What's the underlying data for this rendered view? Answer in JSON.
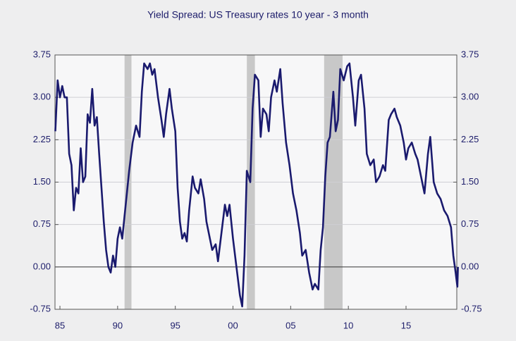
{
  "chart_data": {
    "type": "line",
    "title": "Yield Spread:  US Treasury rates 10 year - 3 month",
    "series": [
      {
        "name": "Yield Spread",
        "color": "#1a1a6e",
        "x": [
          1984.6,
          1984.8,
          1985.0,
          1985.2,
          1985.4,
          1985.6,
          1985.8,
          1986.0,
          1986.2,
          1986.4,
          1986.6,
          1986.8,
          1987.0,
          1987.2,
          1987.4,
          1987.6,
          1987.8,
          1988.0,
          1988.2,
          1988.4,
          1988.6,
          1988.8,
          1989.0,
          1989.2,
          1989.4,
          1989.6,
          1989.8,
          1990.0,
          1990.2,
          1990.4,
          1990.6,
          1990.8,
          1991.0,
          1991.3,
          1991.6,
          1991.9,
          1992.1,
          1992.3,
          1992.6,
          1992.8,
          1993.0,
          1993.2,
          1993.5,
          1993.8,
          1994.0,
          1994.2,
          1994.5,
          1994.7,
          1995.0,
          1995.2,
          1995.4,
          1995.6,
          1995.8,
          1996.0,
          1996.2,
          1996.5,
          1996.7,
          1997.0,
          1997.2,
          1997.5,
          1997.7,
          1998.0,
          1998.2,
          1998.5,
          1998.7,
          1999.0,
          1999.3,
          1999.5,
          1999.7,
          2000.0,
          2000.3,
          2000.6,
          2000.8,
          2001.0,
          2001.2,
          2001.5,
          2001.7,
          2001.9,
          2002.2,
          2002.4,
          2002.6,
          2002.9,
          2003.1,
          2003.3,
          2003.6,
          2003.8,
          2004.1,
          2004.3,
          2004.6,
          2004.9,
          2005.2,
          2005.5,
          2005.8,
          2006.0,
          2006.3,
          2006.6,
          2006.9,
          2007.1,
          2007.4,
          2007.6,
          2007.8,
          2008.0,
          2008.2,
          2008.4,
          2008.7,
          2008.9,
          2009.1,
          2009.3,
          2009.6,
          2009.9,
          2010.1,
          2010.4,
          2010.6,
          2010.9,
          2011.1,
          2011.4,
          2011.6,
          2011.9,
          2012.2,
          2012.4,
          2012.7,
          2013.0,
          2013.2,
          2013.5,
          2013.7,
          2014.0,
          2014.2,
          2014.5,
          2014.8,
          2015.0,
          2015.2,
          2015.5,
          2015.8,
          2016.0,
          2016.3,
          2016.6,
          2016.9,
          2017.1,
          2017.4,
          2017.7,
          2018.0,
          2018.3,
          2018.6,
          2018.9,
          2019.1,
          2019.3,
          2019.45,
          2019.5
        ],
        "values": [
          2.4,
          3.3,
          3.0,
          3.2,
          3.0,
          3.0,
          2.0,
          1.8,
          1.0,
          1.4,
          1.3,
          2.1,
          1.5,
          1.6,
          2.7,
          2.55,
          3.15,
          2.5,
          2.65,
          2.0,
          1.4,
          0.8,
          0.3,
          0.0,
          -0.1,
          0.2,
          0.0,
          0.5,
          0.7,
          0.5,
          0.9,
          1.3,
          1.7,
          2.2,
          2.5,
          2.3,
          3.1,
          3.6,
          3.5,
          3.6,
          3.4,
          3.5,
          3.0,
          2.6,
          2.3,
          2.7,
          3.15,
          2.8,
          2.4,
          1.4,
          0.8,
          0.5,
          0.6,
          0.45,
          1.0,
          1.6,
          1.4,
          1.3,
          1.55,
          1.2,
          0.8,
          0.5,
          0.3,
          0.4,
          0.1,
          0.6,
          1.1,
          0.9,
          1.1,
          0.5,
          0.0,
          -0.5,
          -0.7,
          0.2,
          1.7,
          1.5,
          2.8,
          3.4,
          3.3,
          2.3,
          2.8,
          2.7,
          2.4,
          3.0,
          3.3,
          3.1,
          3.5,
          2.9,
          2.2,
          1.8,
          1.3,
          1.0,
          0.6,
          0.2,
          0.3,
          -0.1,
          -0.4,
          -0.3,
          -0.4,
          0.3,
          0.7,
          1.6,
          2.2,
          2.3,
          3.1,
          2.4,
          2.6,
          3.5,
          3.3,
          3.55,
          3.6,
          3.0,
          2.5,
          3.3,
          3.4,
          2.8,
          2.0,
          1.8,
          1.9,
          1.5,
          1.6,
          1.8,
          1.7,
          2.6,
          2.7,
          2.8,
          2.65,
          2.5,
          2.2,
          1.9,
          2.1,
          2.2,
          2.0,
          1.9,
          1.6,
          1.3,
          2.0,
          2.3,
          1.5,
          1.3,
          1.2,
          1.0,
          0.9,
          0.7,
          0.2,
          -0.1,
          -0.35,
          0.0
        ]
      }
    ],
    "shading": [
      [
        1990.6,
        1991.2
      ],
      [
        2001.2,
        2001.9
      ],
      [
        2007.9,
        2009.5
      ]
    ],
    "shading_color": "#c8c8c8",
    "xlim": [
      1984.57,
      2019.4
    ],
    "xticks": [
      {
        "value": 1985,
        "label": "85"
      },
      {
        "value": 1990,
        "label": "90"
      },
      {
        "value": 1995,
        "label": "95"
      },
      {
        "value": 2000,
        "label": "00"
      },
      {
        "value": 2005,
        "label": "05"
      },
      {
        "value": 2010,
        "label": "10"
      },
      {
        "value": 2015,
        "label": "15"
      }
    ],
    "ylim": [
      -0.75,
      3.75
    ],
    "yticks": [
      -0.75,
      {
        "value": 0,
        "label": "0.00"
      },
      0.75,
      {
        "value": 1.5,
        "label": "1.50"
      },
      2.25,
      {
        "value": 3,
        "label": "3.00"
      },
      3.75
    ],
    "grid": true,
    "y_labels_both_sides": true
  }
}
